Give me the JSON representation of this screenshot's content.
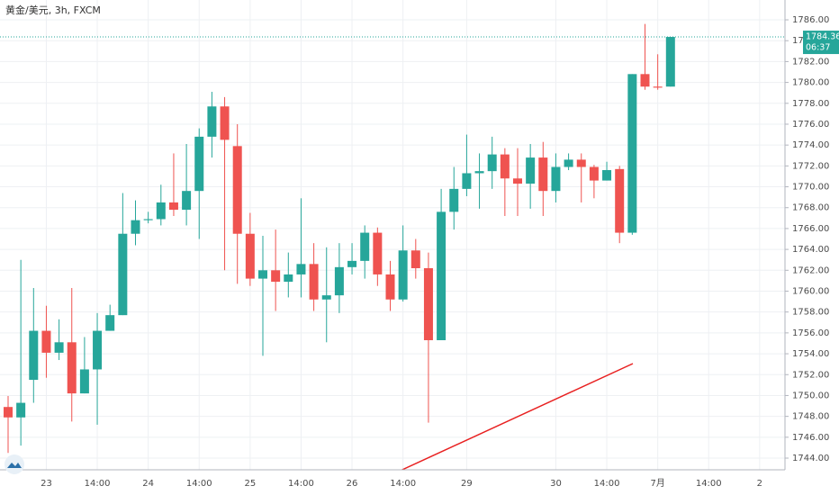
{
  "chart_data": {
    "type": "candlestick",
    "title": "黄金/美元, 3h, FXCM",
    "categories": [
      null,
      null,
      null,
      "23",
      null,
      null,
      null,
      "14:00",
      null,
      null,
      null,
      "24",
      null,
      null,
      null,
      "14:00",
      null,
      null,
      null,
      "25",
      null,
      null,
      null,
      "14:00",
      null,
      null,
      null,
      "26",
      null,
      null,
      null,
      "14:00",
      null,
      null,
      null,
      null,
      "29",
      null,
      null,
      null,
      null,
      null,
      null,
      "30",
      null,
      null,
      null,
      "14:00",
      null,
      null,
      null,
      "7月",
      null,
      null,
      null,
      "14:00",
      null,
      null,
      null,
      "2",
      null
    ],
    "open": [
      1748.9,
      1747.9,
      1751.5,
      1756.2,
      1754.1,
      1755.1,
      1750.2,
      1752.5,
      1756.2,
      1757.7,
      1765.5,
      1766.8,
      1766.9,
      1768.5,
      1767.8,
      1769.6,
      1774.8,
      1777.7,
      1773.9,
      1765.5,
      1761.2,
      1762.0,
      1760.9,
      1761.6,
      1762.6,
      1759.2,
      1759.6,
      1762.3,
      1762.9,
      1765.6,
      1761.6,
      1759.2,
      1763.9,
      1762.2,
      1755.3,
      1767.6,
      1769.8,
      1771.3,
      1771.5,
      1773.1,
      1770.8,
      1770.3,
      1772.8,
      1769.6,
      1771.9,
      1772.6,
      1771.9,
      1770.6,
      1771.7,
      1765.6,
      1780.8,
      1779.6,
      1779.6,
      null,
      null,
      null,
      null,
      null,
      null,
      null,
      null
    ],
    "high": [
      1749.95,
      1763.0,
      1760.3,
      1758.6,
      1757.3,
      1760.3,
      1755.6,
      1757.9,
      1758.7,
      1769.4,
      1768.7,
      1767.6,
      1770.2,
      1773.2,
      1774.1,
      1775.6,
      1779.1,
      1778.6,
      1776.0,
      1767.5,
      1765.3,
      1765.9,
      1763.7,
      1768.9,
      1764.6,
      1764.2,
      1764.6,
      1764.6,
      1766.3,
      1766.1,
      1762.9,
      1766.3,
      1765.0,
      1763.7,
      1769.8,
      1771.9,
      1775.0,
      1773.2,
      1774.8,
      1773.7,
      1773.7,
      1774.1,
      1774.3,
      1773.2,
      1773.2,
      1773.2,
      1772.1,
      1772.4,
      1772.0,
      1780.8,
      1785.6,
      1782.7,
      1784.36,
      null,
      null,
      null,
      null,
      null,
      null,
      null,
      null
    ],
    "low": [
      1744.5,
      1745.2,
      1749.3,
      1751.7,
      1753.4,
      1747.5,
      1750.2,
      1747.2,
      1756.2,
      1757.7,
      1764.4,
      1766.5,
      1766.3,
      1767.2,
      1766.3,
      1765.0,
      1772.8,
      1762.0,
      1760.7,
      1760.5,
      1753.8,
      1758.1,
      1759.4,
      1759.4,
      1758.1,
      1755.1,
      1757.9,
      1761.6,
      1761.2,
      1760.5,
      1758.1,
      1759.0,
      1761.2,
      1747.4,
      1755.3,
      1765.9,
      1769.1,
      1767.9,
      1769.8,
      1767.2,
      1767.2,
      1767.9,
      1767.2,
      1768.5,
      1771.6,
      1768.5,
      1768.9,
      1770.6,
      1764.6,
      1765.4,
      1779.3,
      1779.3,
      1779.6,
      null,
      null,
      null,
      null,
      null,
      null,
      null,
      null
    ],
    "close": [
      1747.9,
      1749.3,
      1756.2,
      1754.1,
      1755.1,
      1750.2,
      1752.5,
      1756.2,
      1757.7,
      1765.5,
      1766.8,
      1766.9,
      1768.5,
      1767.8,
      1769.6,
      1774.8,
      1777.7,
      1774.5,
      1765.5,
      1761.2,
      1762.0,
      1760.9,
      1761.6,
      1762.6,
      1759.2,
      1759.6,
      1762.3,
      1762.9,
      1765.6,
      1761.6,
      1759.2,
      1763.9,
      1762.2,
      1755.3,
      1767.6,
      1769.8,
      1771.3,
      1771.5,
      1773.1,
      1770.8,
      1770.3,
      1772.8,
      1769.6,
      1771.9,
      1772.6,
      1771.9,
      1770.6,
      1771.6,
      1765.6,
      1780.8,
      1779.6,
      1779.5,
      1784.36,
      null,
      null,
      null,
      null,
      null,
      null,
      null,
      null
    ],
    "up_color": "#26a69a",
    "down_color": "#ef5350",
    "ylim": [
      1742.88,
      1787.9
    ],
    "yticks": [
      {
        "value": 1744,
        "label": "1744.00"
      },
      {
        "value": 1746,
        "label": "1746.00"
      },
      {
        "value": 1748,
        "label": "1748.00"
      },
      {
        "value": 1750,
        "label": "1750.00"
      },
      {
        "value": 1752,
        "label": "1752.00"
      },
      {
        "value": 1754,
        "label": "1754.00"
      },
      {
        "value": 1756,
        "label": "1756.00"
      },
      {
        "value": 1758,
        "label": "1758.00"
      },
      {
        "value": 1760,
        "label": "1760.00"
      },
      {
        "value": 1762,
        "label": "1762.00"
      },
      {
        "value": 1764,
        "label": "1764.00"
      },
      {
        "value": 1766,
        "label": "1766.00"
      },
      {
        "value": 1768,
        "label": "1768.00"
      },
      {
        "value": 1770,
        "label": "1770.00"
      },
      {
        "value": 1772,
        "label": "1772.00"
      },
      {
        "value": 1774,
        "label": "1774.00"
      },
      {
        "value": 1776,
        "label": "1776.00"
      },
      {
        "value": 1778,
        "label": "1778.00"
      },
      {
        "value": 1780,
        "label": "1780.00"
      },
      {
        "value": 1782,
        "label": "1782.00"
      },
      {
        "value": 1784,
        "label": "1784.00"
      },
      {
        "value": 1786,
        "label": "1786.00"
      }
    ],
    "grid": true,
    "countdown": "06:37"
  }
}
